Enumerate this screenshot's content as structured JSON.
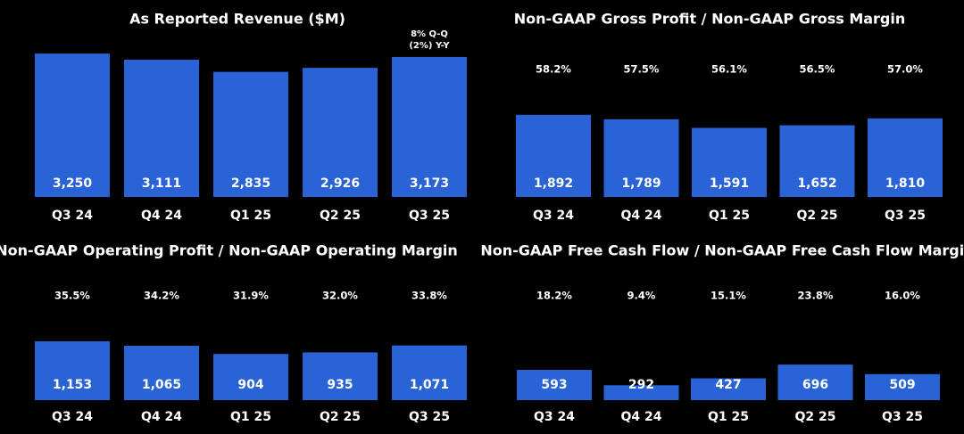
{
  "chart_data": [
    {
      "type": "bar",
      "title": "As Reported Revenue ($M)",
      "categories": [
        "Q3 24",
        "Q4 24",
        "Q1 25",
        "Q2 25",
        "Q3 25"
      ],
      "values": [
        3250,
        3111,
        2835,
        2926,
        3173
      ],
      "value_labels": [
        "3,250",
        "3,111",
        "2,835",
        "2,926",
        "3,173"
      ],
      "annotations": [
        "8% Q-Q",
        "(2%) Y-Y"
      ],
      "color": "#2a63d6"
    },
    {
      "type": "bar",
      "title": "Non-GAAP Gross Profit / Non-GAAP Gross Margin",
      "categories": [
        "Q3 24",
        "Q4 24",
        "Q1 25",
        "Q2 25",
        "Q3 25"
      ],
      "values": [
        1892,
        1789,
        1591,
        1652,
        1810
      ],
      "value_labels": [
        "1,892",
        "1,789",
        "1,591",
        "1,652",
        "1,810"
      ],
      "margin_labels": [
        "58.2%",
        "57.5%",
        "56.1%",
        "56.5%",
        "57.0%"
      ],
      "color": "#2a63d6"
    },
    {
      "type": "bar",
      "title": "Non-GAAP Operating Profit / Non-GAAP Operating Margin",
      "categories": [
        "Q3 24",
        "Q4 24",
        "Q1 25",
        "Q2 25",
        "Q3 25"
      ],
      "values": [
        1153,
        1065,
        904,
        935,
        1071
      ],
      "value_labels": [
        "1,153",
        "1,065",
        "904",
        "935",
        "1,071"
      ],
      "margin_labels": [
        "35.5%",
        "34.2%",
        "31.9%",
        "32.0%",
        "33.8%"
      ],
      "color": "#2a63d6"
    },
    {
      "type": "bar",
      "title": "Non-GAAP Free Cash Flow / Non-GAAP Free Cash Flow Margin",
      "categories": [
        "Q3 24",
        "Q4 24",
        "Q1 25",
        "Q2 25",
        "Q3 25"
      ],
      "values": [
        593,
        292,
        427,
        696,
        509
      ],
      "margin_labels": [
        "18.2%",
        "9.4%",
        "15.1%",
        "23.8%",
        "16.0%"
      ],
      "color": "#2a63d6"
    }
  ]
}
